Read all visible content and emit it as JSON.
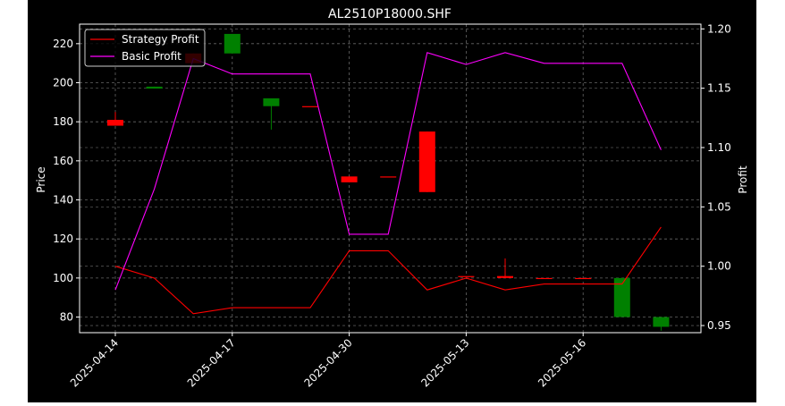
{
  "chart_data": {
    "type": "candlestick",
    "title": "AL2510P18000.SHF",
    "ylabel_left": "Price",
    "ylabel_right": "Profit",
    "ylim_left": [
      72,
      230
    ],
    "ylim_right": [
      0.944,
      1.204
    ],
    "yticks_left": [
      80,
      100,
      120,
      140,
      160,
      180,
      200,
      220
    ],
    "yticks_right": [
      0.95,
      1.0,
      1.05,
      1.1,
      1.15,
      1.2
    ],
    "ytick_labels_right": [
      "0.95",
      "1.00",
      "1.05",
      "1.10",
      "1.15",
      "1.20"
    ],
    "xtick_labels": [
      "2025-04-14",
      "2025-04-17",
      "2025-04-30",
      "2025-05-13",
      "2025-05-16"
    ],
    "xtick_index": [
      0,
      3,
      6,
      9,
      12
    ],
    "grid": true,
    "legend_position": "top-left",
    "candles": [
      {
        "open": 181,
        "close": 178,
        "high": 185,
        "low": 178,
        "color": "#ff0000"
      },
      {
        "open": 197,
        "close": 198,
        "high": 198,
        "low": 197,
        "color": "#008000"
      },
      {
        "open": 215,
        "close": 210,
        "high": 215,
        "low": 210,
        "color": "#ff0000"
      },
      {
        "open": 215,
        "close": 225,
        "high": 225,
        "low": 215,
        "color": "#008000"
      },
      {
        "open": 188,
        "close": 192,
        "high": 192,
        "low": 176,
        "color": "#008000"
      },
      {
        "open": 188,
        "close": 188,
        "high": 188,
        "low": 188,
        "color": "#ff0000"
      },
      {
        "open": 152,
        "close": 149,
        "high": 152,
        "low": 149,
        "color": "#ff0000"
      },
      {
        "open": 152,
        "close": 152,
        "high": 152,
        "low": 152,
        "color": "#ff0000"
      },
      {
        "open": 175,
        "close": 144,
        "high": 175,
        "low": 144,
        "color": "#ff0000"
      },
      {
        "open": 101,
        "close": 101,
        "high": 101,
        "low": 101,
        "color": "#ff0000"
      },
      {
        "open": 101,
        "close": 100,
        "high": 110,
        "low": 100,
        "color": "#ff0000"
      },
      {
        "open": 100,
        "close": 100,
        "high": 100,
        "low": 100,
        "color": "#ff0000"
      },
      {
        "open": 100,
        "close": 100,
        "high": 100,
        "low": 100,
        "color": "#ff0000"
      },
      {
        "open": 80,
        "close": 100,
        "high": 100,
        "low": 80,
        "color": "#008000"
      },
      {
        "open": 75,
        "close": 80,
        "high": 80,
        "low": 73,
        "color": "#008000"
      }
    ],
    "series": [
      {
        "name": "Strategy Profit",
        "color": "#ff0000",
        "values": [
          1.0,
          0.99,
          0.96,
          0.965,
          0.965,
          0.965,
          1.013,
          1.013,
          0.98,
          0.99,
          0.98,
          0.985,
          0.985,
          0.985,
          1.033
        ]
      },
      {
        "name": "Basic Profit",
        "color": "#ff00ff",
        "values": [
          0.98,
          1.065,
          1.175,
          1.162,
          1.162,
          1.162,
          1.027,
          1.027,
          1.18,
          1.17,
          1.18,
          1.171,
          1.171,
          1.171,
          1.098
        ]
      }
    ]
  }
}
